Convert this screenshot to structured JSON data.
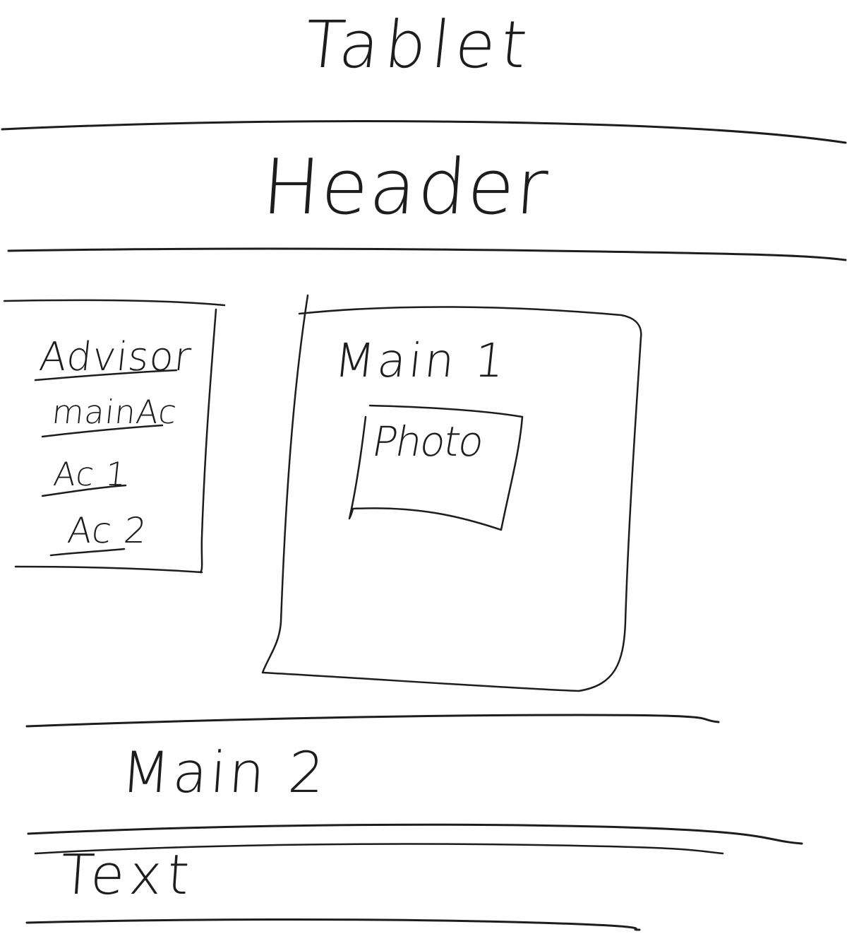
{
  "title": "Tablet",
  "header": {
    "label": "Header"
  },
  "sidebar": {
    "items": [
      {
        "label": "Advisor"
      },
      {
        "label": "mainAc"
      },
      {
        "label": "Ac 1"
      },
      {
        "label": "Ac 2"
      }
    ]
  },
  "main1": {
    "label": "Main 1",
    "photo": {
      "label": "Photo"
    }
  },
  "main2": {
    "label": "Main 2"
  },
  "footer": {
    "label": "Text"
  }
}
